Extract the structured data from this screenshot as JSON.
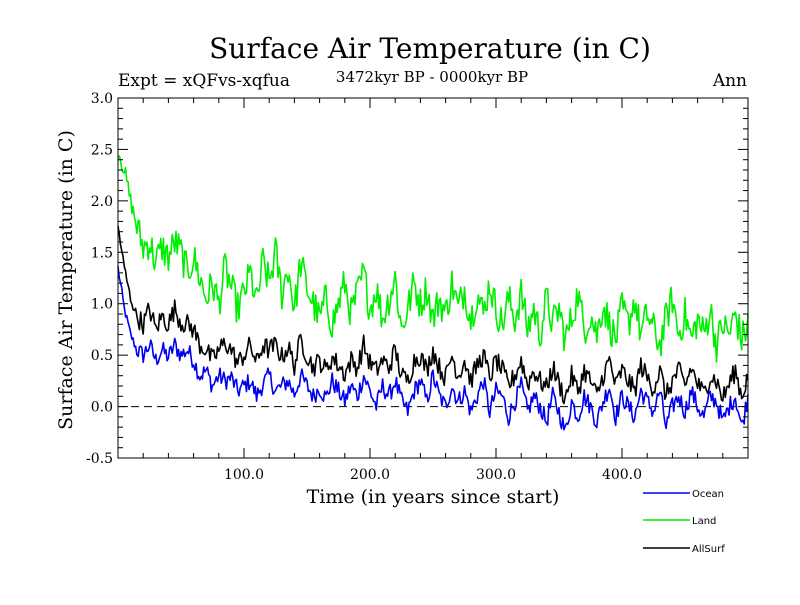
{
  "chart_data": {
    "type": "line",
    "title": "Surface Air Temperature (in C)",
    "subtitle_left": "Expt = xQFvs-xqfua",
    "subtitle_center": "3472kyr BP - 0000kyr BP",
    "subtitle_right": "Ann",
    "xlabel": "Time (in years since start)",
    "ylabel": "Surface Air Temperature (in C)",
    "xlim": [
      0,
      500
    ],
    "ylim": [
      -0.5,
      3.0
    ],
    "x_ticks": [
      100,
      200,
      300,
      400
    ],
    "x_tick_labels": [
      "100.0",
      "200.0",
      "300.0",
      "400.0"
    ],
    "y_ticks": [
      -0.5,
      0.0,
      0.5,
      1.0,
      1.5,
      2.0,
      2.5,
      3.0
    ],
    "y_tick_labels": [
      "-0.5",
      "0.0",
      "0.5",
      "1.0",
      "1.5",
      "2.0",
      "2.5",
      "3.0"
    ],
    "reference_line": {
      "y": 0.0,
      "style": "dashed"
    },
    "legend_position": "bottom-right, below plot",
    "x": [
      0,
      5,
      10,
      15,
      20,
      25,
      30,
      35,
      40,
      45,
      50,
      55,
      60,
      65,
      70,
      75,
      80,
      85,
      90,
      95,
      100,
      105,
      110,
      115,
      120,
      125,
      130,
      135,
      140,
      145,
      150,
      155,
      160,
      165,
      170,
      175,
      180,
      185,
      190,
      195,
      200,
      205,
      210,
      215,
      220,
      225,
      230,
      235,
      240,
      245,
      250,
      255,
      260,
      265,
      270,
      275,
      280,
      285,
      290,
      295,
      300,
      305,
      310,
      315,
      320,
      325,
      330,
      335,
      340,
      345,
      350,
      355,
      360,
      365,
      370,
      375,
      380,
      385,
      390,
      395,
      400,
      405,
      410,
      415,
      420,
      425,
      430,
      435,
      440,
      445,
      450,
      455,
      460,
      465,
      470,
      475,
      480,
      485,
      490,
      495,
      500
    ],
    "series": [
      {
        "name": "Ocean",
        "color": "#0000ee",
        "values": [
          1.35,
          0.95,
          0.7,
          0.55,
          0.5,
          0.6,
          0.45,
          0.55,
          0.48,
          0.6,
          0.5,
          0.55,
          0.45,
          0.3,
          0.35,
          0.2,
          0.3,
          0.25,
          0.28,
          0.15,
          0.2,
          0.25,
          0.1,
          0.22,
          0.3,
          0.15,
          0.2,
          0.25,
          0.12,
          0.3,
          0.2,
          0.1,
          0.18,
          0.08,
          0.25,
          0.15,
          0.05,
          0.2,
          0.1,
          0.3,
          0.15,
          0.0,
          0.2,
          0.1,
          0.25,
          0.05,
          -0.05,
          0.15,
          0.25,
          0.05,
          0.3,
          0.1,
          0.0,
          0.2,
          0.05,
          0.15,
          -0.05,
          0.1,
          0.25,
          -0.05,
          0.15,
          0.1,
          -0.1,
          0.05,
          0.2,
          -0.05,
          0.1,
          0.0,
          -0.15,
          0.1,
          -0.05,
          -0.25,
          0.05,
          -0.1,
          0.1,
          0.0,
          -0.15,
          0.05,
          0.2,
          -0.1,
          0.1,
          0.0,
          -0.1,
          0.15,
          0.05,
          -0.05,
          0.15,
          -0.2,
          0.0,
          0.1,
          -0.05,
          0.15,
          0.0,
          -0.1,
          0.1,
          0.05,
          -0.15,
          0.0,
          0.1,
          -0.2,
          0.1
        ]
      },
      {
        "name": "Land",
        "color": "#00ee00",
        "values": [
          2.5,
          2.3,
          2.0,
          1.75,
          1.55,
          1.6,
          1.4,
          1.55,
          1.45,
          1.6,
          1.5,
          1.3,
          1.45,
          1.25,
          1.05,
          1.2,
          1.0,
          1.35,
          1.15,
          0.95,
          1.1,
          1.3,
          1.0,
          1.4,
          1.2,
          1.5,
          1.1,
          1.35,
          0.95,
          1.4,
          1.15,
          1.0,
          0.85,
          1.05,
          0.8,
          1.0,
          1.2,
          0.9,
          1.1,
          1.3,
          0.95,
          1.15,
          0.85,
          1.05,
          1.25,
          0.75,
          0.95,
          1.2,
          1.0,
          1.15,
          0.85,
          1.05,
          0.9,
          1.2,
          0.95,
          1.15,
          0.85,
          1.1,
          0.9,
          1.2,
          0.95,
          0.8,
          1.05,
          0.85,
          1.1,
          0.75,
          0.95,
          0.7,
          1.05,
          0.8,
          0.95,
          0.65,
          0.85,
          1.1,
          0.75,
          0.9,
          0.7,
          1.0,
          0.8,
          0.65,
          0.95,
          0.8,
          1.05,
          0.7,
          0.9,
          0.75,
          0.6,
          0.85,
          1.05,
          0.7,
          0.9,
          0.65,
          0.85,
          0.7,
          0.95,
          0.6,
          0.8,
          0.7,
          0.9,
          0.65,
          0.8
        ]
      },
      {
        "name": "AllSurf",
        "color": "#000000",
        "values": [
          1.75,
          1.35,
          1.05,
          0.88,
          0.8,
          0.95,
          0.75,
          0.88,
          0.8,
          0.95,
          0.82,
          0.8,
          0.75,
          0.6,
          0.55,
          0.45,
          0.55,
          0.62,
          0.55,
          0.42,
          0.5,
          0.6,
          0.42,
          0.6,
          0.55,
          0.6,
          0.48,
          0.58,
          0.4,
          0.65,
          0.5,
          0.38,
          0.45,
          0.35,
          0.48,
          0.4,
          0.32,
          0.45,
          0.38,
          0.6,
          0.42,
          0.35,
          0.45,
          0.38,
          0.55,
          0.3,
          0.25,
          0.45,
          0.5,
          0.35,
          0.55,
          0.38,
          0.28,
          0.5,
          0.3,
          0.45,
          0.25,
          0.4,
          0.5,
          0.28,
          0.45,
          0.35,
          0.2,
          0.3,
          0.45,
          0.22,
          0.35,
          0.25,
          0.18,
          0.38,
          0.22,
          0.08,
          0.3,
          0.15,
          0.35,
          0.25,
          0.1,
          0.3,
          0.45,
          0.2,
          0.35,
          0.25,
          0.15,
          0.4,
          0.28,
          0.18,
          0.35,
          0.1,
          0.25,
          0.35,
          0.2,
          0.38,
          0.22,
          0.12,
          0.3,
          0.25,
          0.08,
          0.22,
          0.35,
          0.1,
          0.3
        ]
      }
    ]
  }
}
